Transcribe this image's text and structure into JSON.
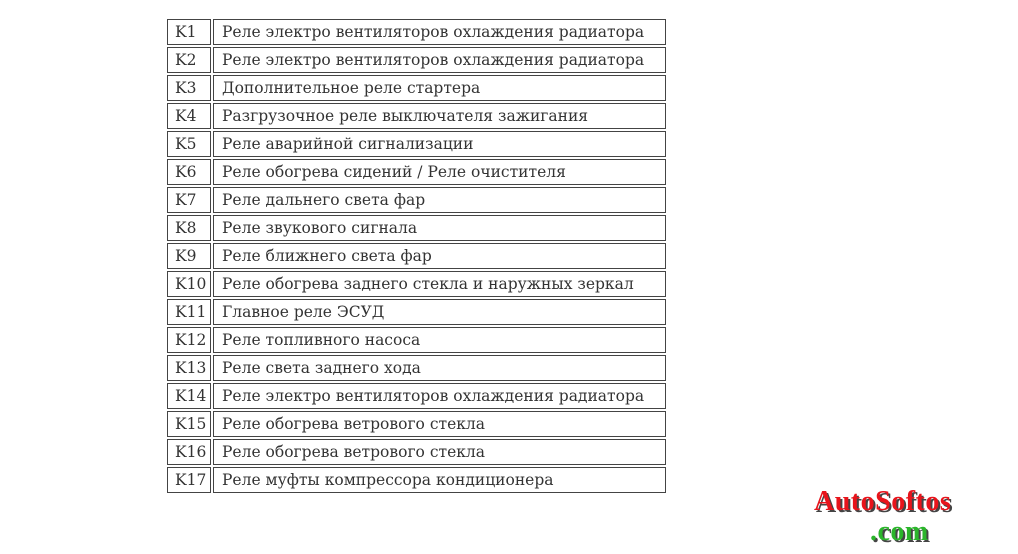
{
  "table": {
    "rows": [
      [
        "K1",
        "Реле электро вентиляторов охлаждения радиатора"
      ],
      [
        "K2",
        "Реле электро вентиляторов охлаждения радиатора"
      ],
      [
        "K3",
        "Дополнительное реле стартера"
      ],
      [
        "K4",
        "Разгрузочное реле выключателя зажигания"
      ],
      [
        "K5",
        "Реле аварийной сигнализации"
      ],
      [
        "K6",
        "Реле обогрева сидений / Реле очистителя"
      ],
      [
        "K7",
        "Реле дальнего света фар"
      ],
      [
        "K8",
        "Реле звукового сигнала"
      ],
      [
        "K9",
        "Реле ближнего света фар"
      ],
      [
        "K10",
        "Реле обогрева заднего стекла и наружных зеркал"
      ],
      [
        "K11",
        "Главное реле ЭСУД"
      ],
      [
        "K12",
        "Реле топливного насоса"
      ],
      [
        "K13",
        "Реле света заднего хода"
      ],
      [
        "K14",
        "Реле электро вентиляторов охлаждения радиатора"
      ],
      [
        "K15",
        "Реле обогрева ветрового стекла"
      ],
      [
        "K16",
        "Реле обогрева ветрового стекла"
      ],
      [
        "K17",
        "Реле муфты компрессора кондиционера"
      ]
    ]
  },
  "watermark": {
    "brand": "AutoSoftos",
    "domain": ".com"
  }
}
